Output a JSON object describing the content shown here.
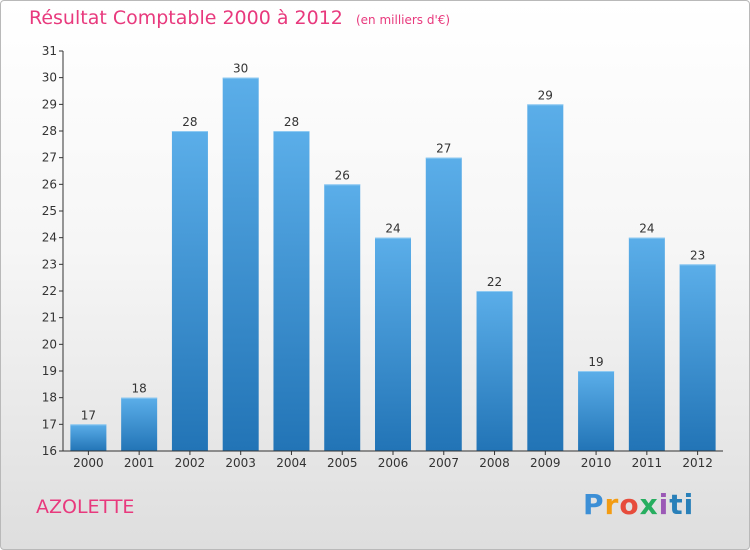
{
  "header": {
    "title": "Résultat Comptable 2000 à 2012",
    "unit": "(en milliers d'€)"
  },
  "footer": {
    "place": "AZOLETTE",
    "logo": [
      "P",
      "r",
      "o",
      "x",
      "i",
      "ti"
    ]
  },
  "colors": {
    "accent": "#e8397d",
    "bar_top": "#5baee9",
    "bar_bottom": "#2274b6"
  },
  "chart_data": {
    "type": "bar",
    "title": "Résultat Comptable 2000 à 2012",
    "subtitle": "(en milliers d'€)",
    "xlabel": "",
    "ylabel": "",
    "categories": [
      "2000",
      "2001",
      "2002",
      "2003",
      "2004",
      "2005",
      "2006",
      "2007",
      "2008",
      "2009",
      "2010",
      "2011",
      "2012"
    ],
    "values": [
      17,
      18,
      28,
      30,
      28,
      26,
      24,
      27,
      22,
      29,
      19,
      24,
      23
    ],
    "ylim": [
      16,
      31
    ],
    "yticks": [
      16,
      17,
      18,
      19,
      20,
      21,
      22,
      23,
      24,
      25,
      26,
      27,
      28,
      29,
      30,
      31
    ],
    "grid": false,
    "legend": "none"
  }
}
